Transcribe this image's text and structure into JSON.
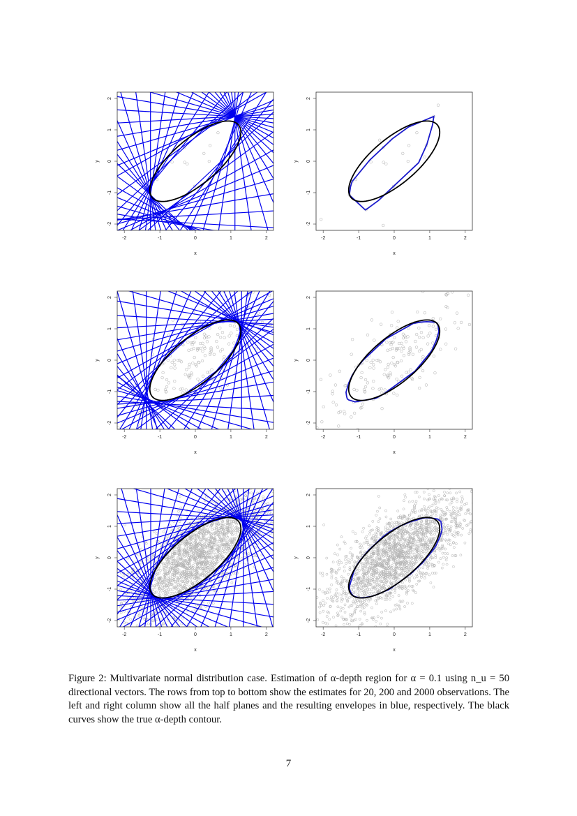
{
  "figure": {
    "caption": "Figure 2: Multivariate normal distribution case. Estimation of α-depth region for α = 0.1 using n_u = 50 directional vectors. The rows from top to bottom show the estimates for 20, 200 and 2000 observations. The left and right column show all the half planes and the resulting envelopes in blue, respectively. The black curves show the true α-depth contour.",
    "page_number": "7"
  },
  "colors": {
    "half_planes": "#0000ee",
    "envelope": "#1a1acc",
    "true_contour": "#000000",
    "points": "#b0b0b0"
  },
  "chart_data": [
    {
      "type": "scatter",
      "panel": "row1-left",
      "n_obs": 20,
      "shows": "half planes",
      "xlabel": "x",
      "ylabel": "y",
      "xlim": [
        -2.2,
        2.2
      ],
      "ylim": [
        -2.2,
        2.2
      ],
      "xticks": [
        "-2",
        "-1",
        "0",
        "1",
        "2"
      ],
      "yticks": [
        "-2",
        "-1",
        "0",
        "1",
        "2"
      ]
    },
    {
      "type": "scatter",
      "panel": "row1-right",
      "n_obs": 20,
      "shows": "envelope",
      "xlabel": "x",
      "ylabel": "y",
      "xlim": [
        -2.2,
        2.2
      ],
      "ylim": [
        -2.2,
        2.2
      ],
      "xticks": [
        "-2",
        "-1",
        "0",
        "1",
        "2"
      ],
      "yticks": [
        "-2",
        "-1",
        "0",
        "1",
        "2"
      ]
    },
    {
      "type": "scatter",
      "panel": "row2-left",
      "n_obs": 200,
      "shows": "half planes",
      "xlabel": "x",
      "ylabel": "y",
      "xlim": [
        -2.2,
        2.2
      ],
      "ylim": [
        -2.2,
        2.2
      ],
      "xticks": [
        "-2",
        "-1",
        "0",
        "1",
        "2"
      ],
      "yticks": [
        "-2",
        "-1",
        "0",
        "1",
        "2"
      ]
    },
    {
      "type": "scatter",
      "panel": "row2-right",
      "n_obs": 200,
      "shows": "envelope",
      "xlabel": "x",
      "ylabel": "y",
      "xlim": [
        -2.2,
        2.2
      ],
      "ylim": [
        -2.2,
        2.2
      ],
      "xticks": [
        "-2",
        "-1",
        "0",
        "1",
        "2"
      ],
      "yticks": [
        "-2",
        "-1",
        "0",
        "1",
        "2"
      ]
    },
    {
      "type": "scatter",
      "panel": "row3-left",
      "n_obs": 2000,
      "shows": "half planes",
      "xlabel": "x",
      "ylabel": "y",
      "xlim": [
        -2.2,
        2.2
      ],
      "ylim": [
        -2.2,
        2.2
      ],
      "xticks": [
        "-2",
        "-1",
        "0",
        "1",
        "2"
      ],
      "yticks": [
        "-2",
        "-1",
        "0",
        "1",
        "2"
      ]
    },
    {
      "type": "scatter",
      "panel": "row3-right",
      "n_obs": 2000,
      "shows": "envelope",
      "xlabel": "x",
      "ylabel": "y",
      "xlim": [
        -2.2,
        2.2
      ],
      "ylim": [
        -2.2,
        2.2
      ],
      "xticks": [
        "-2",
        "-1",
        "0",
        "1",
        "2"
      ],
      "yticks": [
        "-2",
        "-1",
        "0",
        "1",
        "2"
      ]
    }
  ],
  "params": {
    "alpha": 0.1,
    "n_directions": 50
  }
}
